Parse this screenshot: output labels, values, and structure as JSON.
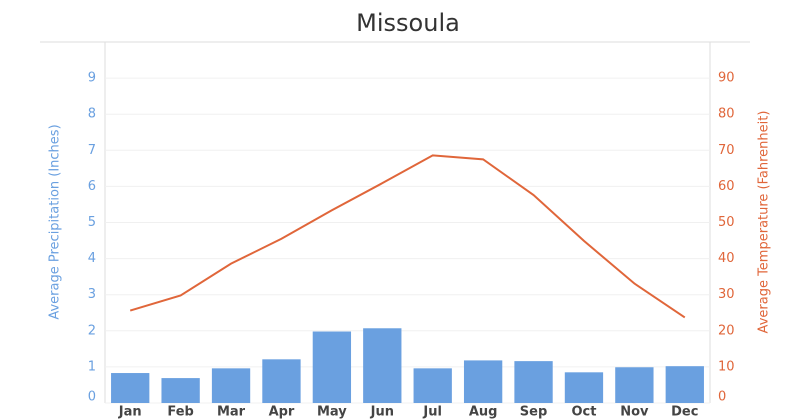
{
  "chart_data": {
    "type": "bar-line",
    "title": "Missoula",
    "categories": [
      "Jan",
      "Feb",
      "Mar",
      "Apr",
      "May",
      "Jun",
      "Jul",
      "Aug",
      "Sep",
      "Oct",
      "Nov",
      "Dec"
    ],
    "series": [
      {
        "name": "Average Precipitation (Inches)",
        "type": "bar",
        "color": "#6aa0e0",
        "axis": "y",
        "values": [
          0.83,
          0.69,
          0.96,
          1.21,
          1.98,
          2.07,
          0.96,
          1.18,
          1.16,
          0.85,
          0.99,
          1.02
        ]
      },
      {
        "name": "Average Temperature (Fahrenheit)",
        "type": "line",
        "color": "#e0663a",
        "axis": "y2",
        "values": [
          25.6,
          29.8,
          38.6,
          45.5,
          53.4,
          60.9,
          68.6,
          67.5,
          57.6,
          44.9,
          33.1,
          23.7
        ]
      }
    ],
    "ylabel": "Average Precipitation (Inches)",
    "y2label": "Average Temperature (Fahrenheit)",
    "ylim": [
      0,
      10
    ],
    "yticks": [
      0,
      1,
      2,
      3,
      4,
      5,
      6,
      7,
      8,
      9
    ],
    "y2lim": [
      0,
      100
    ],
    "y2ticks": [
      0,
      10,
      20,
      30,
      40,
      50,
      60,
      70,
      80,
      90
    ],
    "grid": true
  }
}
